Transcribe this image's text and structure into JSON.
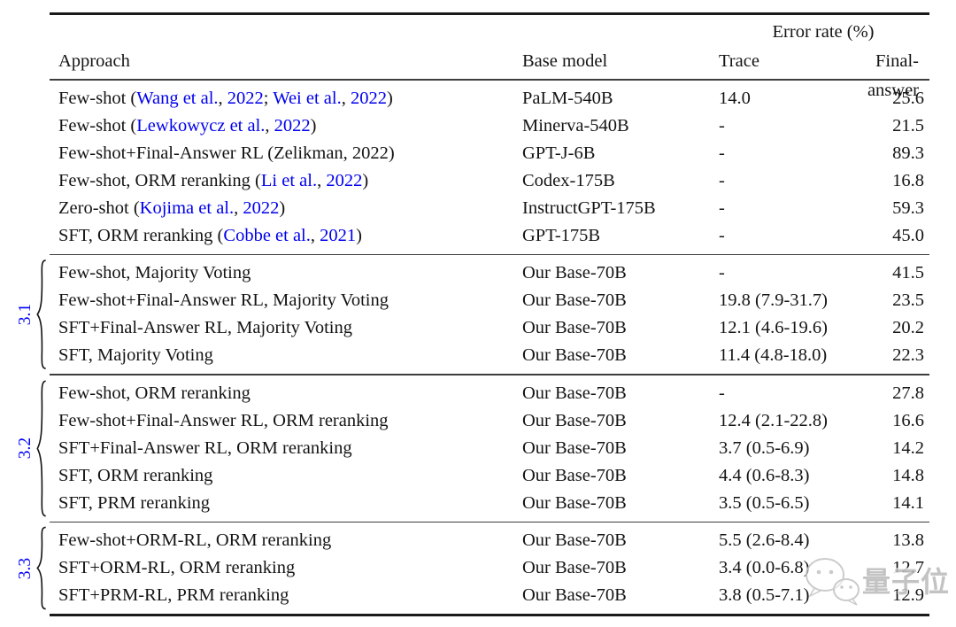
{
  "table": {
    "headers": {
      "approach": "Approach",
      "base_model": "Base model",
      "error_rate_group": "Error rate (%)",
      "trace": "Trace",
      "final_answer": "Final-answer"
    },
    "groups": [
      {
        "label": "",
        "rows": [
          {
            "approach": [
              {
                "t": "Few-shot (",
                "link": false
              },
              {
                "t": "Wang et al.",
                "link": true
              },
              {
                "t": ", ",
                "link": false
              },
              {
                "t": "2022",
                "link": true
              },
              {
                "t": "; ",
                "link": false
              },
              {
                "t": "Wei et al.",
                "link": true
              },
              {
                "t": ", ",
                "link": false
              },
              {
                "t": "2022",
                "link": true
              },
              {
                "t": ")",
                "link": false
              }
            ],
            "base": "PaLM-540B",
            "trace": "14.0",
            "final": "25.6"
          },
          {
            "approach": [
              {
                "t": "Few-shot (",
                "link": false
              },
              {
                "t": "Lewkowycz et al.",
                "link": true
              },
              {
                "t": ", ",
                "link": false
              },
              {
                "t": "2022",
                "link": true
              },
              {
                "t": ")",
                "link": false
              }
            ],
            "base": "Minerva-540B",
            "trace": "-",
            "final": "21.5"
          },
          {
            "approach": [
              {
                "t": "Few-shot+Final-Answer RL (Zelikman, 2022)",
                "link": false
              }
            ],
            "base": "GPT-J-6B",
            "trace": "-",
            "final": "89.3"
          },
          {
            "approach": [
              {
                "t": "Few-shot, ORM reranking (",
                "link": false
              },
              {
                "t": "Li et al.",
                "link": true
              },
              {
                "t": ", ",
                "link": false
              },
              {
                "t": "2022",
                "link": true
              },
              {
                "t": ")",
                "link": false
              }
            ],
            "base": "Codex-175B",
            "trace": "-",
            "final": "16.8"
          },
          {
            "approach": [
              {
                "t": "Zero-shot (",
                "link": false
              },
              {
                "t": "Kojima et al.",
                "link": true
              },
              {
                "t": ", ",
                "link": false
              },
              {
                "t": "2022",
                "link": true
              },
              {
                "t": ")",
                "link": false
              }
            ],
            "base": "InstructGPT-175B",
            "trace": "-",
            "final": "59.3"
          },
          {
            "approach": [
              {
                "t": "SFT, ORM reranking (",
                "link": false
              },
              {
                "t": "Cobbe et al.",
                "link": true
              },
              {
                "t": ", ",
                "link": false
              },
              {
                "t": "2021",
                "link": true
              },
              {
                "t": ")",
                "link": false
              }
            ],
            "base": "GPT-175B",
            "trace": "-",
            "final": "45.0"
          }
        ]
      },
      {
        "label": "3.1",
        "rows": [
          {
            "approach": [
              {
                "t": "Few-shot, Majority Voting",
                "link": false
              }
            ],
            "base": "Our Base-70B",
            "trace": "-",
            "final": "41.5"
          },
          {
            "approach": [
              {
                "t": "Few-shot+Final-Answer RL, Majority Voting",
                "link": false
              }
            ],
            "base": "Our Base-70B",
            "trace": "19.8 (7.9-31.7)",
            "final": "23.5"
          },
          {
            "approach": [
              {
                "t": "SFT+Final-Answer RL, Majority Voting",
                "link": false
              }
            ],
            "base": "Our Base-70B",
            "trace": "12.1 (4.6-19.6)",
            "final": "20.2"
          },
          {
            "approach": [
              {
                "t": "SFT, Majority Voting",
                "link": false
              }
            ],
            "base": "Our Base-70B",
            "trace": "11.4 (4.8-18.0)",
            "final": "22.3"
          }
        ]
      },
      {
        "label": "3.2",
        "rows": [
          {
            "approach": [
              {
                "t": "Few-shot, ORM reranking",
                "link": false
              }
            ],
            "base": "Our Base-70B",
            "trace": "-",
            "final": "27.8"
          },
          {
            "approach": [
              {
                "t": "Few-shot+Final-Answer RL, ORM reranking",
                "link": false
              }
            ],
            "base": "Our Base-70B",
            "trace": "12.4 (2.1-22.8)",
            "final": "16.6"
          },
          {
            "approach": [
              {
                "t": "SFT+Final-Answer RL, ORM reranking",
                "link": false
              }
            ],
            "base": "Our Base-70B",
            "trace": "3.7   (0.5-6.9)",
            "final": "14.2"
          },
          {
            "approach": [
              {
                "t": "SFT, ORM reranking",
                "link": false
              }
            ],
            "base": "Our Base-70B",
            "trace": "4.4   (0.6-8.3)",
            "final": "14.8"
          },
          {
            "approach": [
              {
                "t": "SFT, PRM reranking",
                "link": false
              }
            ],
            "base": "Our Base-70B",
            "trace": "3.5   (0.5-6.5)",
            "final": "14.1"
          }
        ]
      },
      {
        "label": "3.3",
        "rows": [
          {
            "approach": [
              {
                "t": "Few-shot+ORM-RL, ORM reranking",
                "link": false
              }
            ],
            "base": "Our Base-70B",
            "trace": "5.5 (2.6-8.4)",
            "final": "13.8"
          },
          {
            "approach": [
              {
                "t": "SFT+ORM-RL, ORM reranking",
                "link": false
              }
            ],
            "base": "Our Base-70B",
            "trace": "3.4 (0.0-6.8)",
            "final": "12.7"
          },
          {
            "approach": [
              {
                "t": "SFT+PRM-RL, PRM reranking",
                "link": false
              }
            ],
            "base": "Our Base-70B",
            "trace": "3.8 (0.5-7.1)",
            "final": "12.9"
          }
        ]
      }
    ]
  },
  "colors": {
    "link_blue": "#0000ee",
    "group_label_blue": "#0000ff",
    "rule_black": "#1a1a1a"
  },
  "watermark": {
    "text": "量子位",
    "icon": "wechat-bubbles-icon"
  }
}
